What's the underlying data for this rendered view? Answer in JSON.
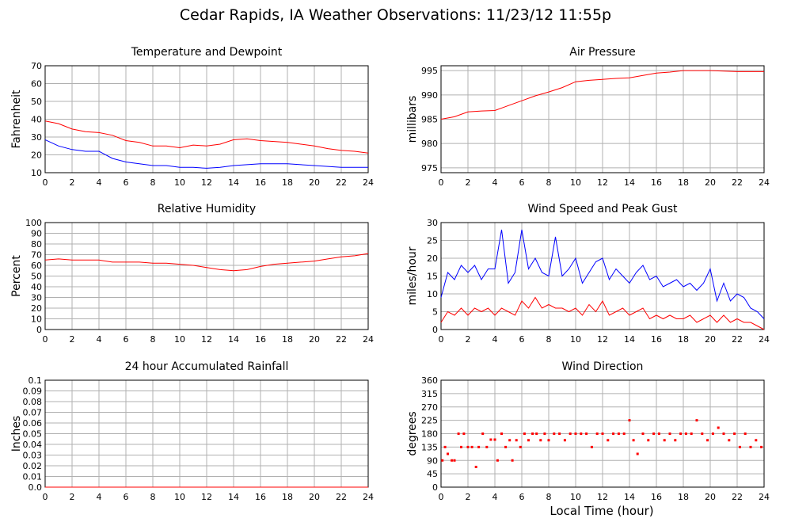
{
  "title": "Cedar Rapids, IA Weather Observations: 11/23/12 11:55p",
  "colors": {
    "red": "#ff0000",
    "blue": "#0000ff",
    "grid": "#b0b0b0"
  },
  "xlabel": "Local Time (hour)",
  "chart_data": [
    {
      "id": "temp",
      "type": "line",
      "title": "Temperature and Dewpoint",
      "ylabel": "Fahrenheit",
      "xlim": [
        0,
        24
      ],
      "ylim": [
        10,
        70
      ],
      "yticks": [
        "10",
        "20",
        "30",
        "40",
        "50",
        "60",
        "70"
      ],
      "xticks": [
        "0",
        "2",
        "4",
        "6",
        "8",
        "10",
        "12",
        "14",
        "16",
        "18",
        "20",
        "22",
        "24"
      ],
      "series": [
        {
          "color": "red",
          "x": [
            0,
            1,
            2,
            3,
            4,
            5,
            6,
            7,
            8,
            9,
            10,
            11,
            12,
            13,
            14,
            15,
            16,
            17,
            18,
            19,
            20,
            21,
            22,
            23,
            24
          ],
          "values": [
            39,
            37.5,
            34.5,
            33,
            32.5,
            31,
            28,
            27,
            25,
            25,
            24,
            25.5,
            25,
            26,
            28.5,
            29,
            28,
            27.5,
            27,
            26,
            25,
            23.5,
            22.5,
            22,
            21
          ]
        },
        {
          "color": "blue",
          "x": [
            0,
            1,
            2,
            3,
            4,
            5,
            6,
            7,
            8,
            9,
            10,
            11,
            12,
            13,
            14,
            15,
            16,
            17,
            18,
            19,
            20,
            21,
            22,
            23,
            24
          ],
          "values": [
            28.5,
            25,
            23,
            22,
            22,
            18,
            16,
            15,
            14,
            14,
            13,
            13,
            12.5,
            13,
            14,
            14.5,
            15,
            15,
            15,
            14.5,
            14,
            13.5,
            13,
            13,
            13
          ]
        }
      ]
    },
    {
      "id": "pressure",
      "type": "line",
      "title": "Air Pressure",
      "ylabel": "millibars",
      "xlim": [
        0,
        24
      ],
      "ylim": [
        974,
        996
      ],
      "yticks": [
        "975",
        "980",
        "985",
        "990",
        "995"
      ],
      "xticks": [
        "0",
        "2",
        "4",
        "6",
        "8",
        "10",
        "12",
        "14",
        "16",
        "18",
        "20",
        "22",
        "24"
      ],
      "series": [
        {
          "color": "red",
          "x": [
            0,
            1,
            2,
            3,
            4,
            5,
            6,
            7,
            8,
            9,
            10,
            11,
            12,
            13,
            14,
            15,
            16,
            17,
            18,
            19,
            20,
            21,
            22,
            23,
            24
          ],
          "values": [
            985,
            985.5,
            986.5,
            986.7,
            986.8,
            987.8,
            988.8,
            989.8,
            990.6,
            991.5,
            992.7,
            993,
            993.2,
            993.4,
            993.5,
            994,
            994.5,
            994.7,
            995,
            995,
            995,
            994.9,
            994.8,
            994.8,
            994.8
          ]
        }
      ]
    },
    {
      "id": "humidity",
      "type": "line",
      "title": "Relative Humidity",
      "ylabel": "Percent",
      "xlim": [
        0,
        24
      ],
      "ylim": [
        0,
        100
      ],
      "yticks": [
        "0",
        "10",
        "20",
        "30",
        "40",
        "50",
        "60",
        "70",
        "80",
        "90",
        "100"
      ],
      "xticks": [
        "0",
        "2",
        "4",
        "6",
        "8",
        "10",
        "12",
        "14",
        "16",
        "18",
        "20",
        "22",
        "24"
      ],
      "series": [
        {
          "color": "red",
          "x": [
            0,
            1,
            2,
            3,
            4,
            5,
            6,
            7,
            8,
            9,
            10,
            11,
            12,
            13,
            14,
            15,
            16,
            17,
            18,
            19,
            20,
            21,
            22,
            23,
            24
          ],
          "values": [
            65,
            66,
            65,
            65,
            65,
            63,
            63,
            63,
            62,
            62,
            61,
            60,
            58,
            56,
            55,
            56,
            59,
            61,
            62,
            63,
            64,
            66,
            68,
            69,
            71
          ]
        }
      ]
    },
    {
      "id": "wind",
      "type": "line",
      "title": "Wind Speed and Peak Gust",
      "ylabel": "miles/hour",
      "xlim": [
        0,
        24
      ],
      "ylim": [
        0,
        30
      ],
      "yticks": [
        "0",
        "5",
        "10",
        "15",
        "20",
        "25",
        "30"
      ],
      "xticks": [
        "0",
        "2",
        "4",
        "6",
        "8",
        "10",
        "12",
        "14",
        "16",
        "18",
        "20",
        "22",
        "24"
      ],
      "series": [
        {
          "color": "blue",
          "x": [
            0,
            0.5,
            1,
            1.5,
            2,
            2.5,
            3,
            3.5,
            4,
            4.5,
            5,
            5.5,
            6,
            6.5,
            7,
            7.5,
            8,
            8.5,
            9,
            9.5,
            10,
            10.5,
            11,
            11.5,
            12,
            12.5,
            13,
            13.5,
            14,
            14.5,
            15,
            15.5,
            16,
            16.5,
            17,
            17.5,
            18,
            18.5,
            19,
            19.5,
            20,
            20.5,
            21,
            21.5,
            22,
            22.5,
            23,
            23.5,
            24
          ],
          "values": [
            9,
            16,
            14,
            18,
            16,
            18,
            14,
            17,
            17,
            28,
            13,
            16,
            28,
            17,
            20,
            16,
            15,
            26,
            15,
            17,
            20,
            13,
            16,
            19,
            20,
            14,
            17,
            15,
            13,
            16,
            18,
            14,
            15,
            12,
            13,
            14,
            12,
            13,
            11,
            13,
            17,
            8,
            13,
            8,
            10,
            9,
            6,
            5,
            3
          ]
        },
        {
          "color": "red",
          "x": [
            0,
            0.5,
            1,
            1.5,
            2,
            2.5,
            3,
            3.5,
            4,
            4.5,
            5,
            5.5,
            6,
            6.5,
            7,
            7.5,
            8,
            8.5,
            9,
            9.5,
            10,
            10.5,
            11,
            11.5,
            12,
            12.5,
            13,
            13.5,
            14,
            14.5,
            15,
            15.5,
            16,
            16.5,
            17,
            17.5,
            18,
            18.5,
            19,
            19.5,
            20,
            20.5,
            21,
            21.5,
            22,
            22.5,
            23,
            23.5,
            24
          ],
          "values": [
            2,
            5,
            4,
            6,
            4,
            6,
            5,
            6,
            4,
            6,
            5,
            4,
            8,
            6,
            9,
            6,
            7,
            6,
            6,
            5,
            6,
            4,
            7,
            5,
            8,
            4,
            5,
            6,
            4,
            5,
            6,
            3,
            4,
            3,
            4,
            3,
            3,
            4,
            2,
            3,
            4,
            2,
            4,
            2,
            3,
            2,
            2,
            1,
            0
          ]
        }
      ]
    },
    {
      "id": "rain",
      "type": "line",
      "title": "24 hour Accumulated Rainfall",
      "ylabel": "Inches",
      "xlim": [
        0,
        24
      ],
      "ylim": [
        0,
        0.1
      ],
      "yticks": [
        "0.0",
        "0.01",
        "0.02",
        "0.03",
        "0.04",
        "0.05",
        "0.06",
        "0.07",
        "0.08",
        "0.09",
        "0.1"
      ],
      "xticks": [
        "0",
        "2",
        "4",
        "6",
        "8",
        "10",
        "12",
        "14",
        "16",
        "18",
        "20",
        "22",
        "24"
      ],
      "series": [
        {
          "color": "red",
          "x": [
            0,
            24
          ],
          "values": [
            0,
            0
          ]
        }
      ]
    },
    {
      "id": "direction",
      "type": "scatter",
      "title": "Wind Direction",
      "ylabel": "degrees",
      "xlim": [
        0,
        24
      ],
      "ylim": [
        0,
        360
      ],
      "yticks": [
        "0",
        "45",
        "90",
        "135",
        "180",
        "225",
        "270",
        "315",
        "360"
      ],
      "xticks": [
        "0",
        "2",
        "4",
        "6",
        "8",
        "10",
        "12",
        "14",
        "16",
        "18",
        "20",
        "22",
        "24"
      ],
      "series": [
        {
          "color": "red",
          "x": [
            0.1,
            0.3,
            0.5,
            0.8,
            1.0,
            1.3,
            1.5,
            1.7,
            2.0,
            2.3,
            2.6,
            2.8,
            3.1,
            3.4,
            3.7,
            4.0,
            4.2,
            4.5,
            4.8,
            5.1,
            5.3,
            5.6,
            5.9,
            6.2,
            6.5,
            6.8,
            7.1,
            7.4,
            7.7,
            8.0,
            8.4,
            8.8,
            9.2,
            9.6,
            10.0,
            10.4,
            10.8,
            11.2,
            11.6,
            12.0,
            12.4,
            12.8,
            13.2,
            13.6,
            14.0,
            14.3,
            14.6,
            15.0,
            15.4,
            15.8,
            16.2,
            16.6,
            17.0,
            17.4,
            17.8,
            18.2,
            18.6,
            19.0,
            19.4,
            19.8,
            20.2,
            20.6,
            21.0,
            21.4,
            21.8,
            22.2,
            22.6,
            23.0,
            23.4,
            23.8
          ],
          "values": [
            90,
            135,
            112,
            90,
            90,
            180,
            135,
            180,
            135,
            135,
            68,
            135,
            180,
            135,
            160,
            160,
            90,
            180,
            135,
            158,
            90,
            158,
            135,
            180,
            158,
            180,
            180,
            158,
            180,
            158,
            180,
            180,
            158,
            180,
            180,
            180,
            180,
            135,
            180,
            180,
            158,
            180,
            180,
            180,
            225,
            158,
            112,
            180,
            158,
            180,
            180,
            158,
            180,
            158,
            180,
            180,
            180,
            225,
            180,
            158,
            180,
            200,
            180,
            158,
            180,
            135,
            180,
            135,
            158,
            135
          ]
        }
      ]
    }
  ]
}
